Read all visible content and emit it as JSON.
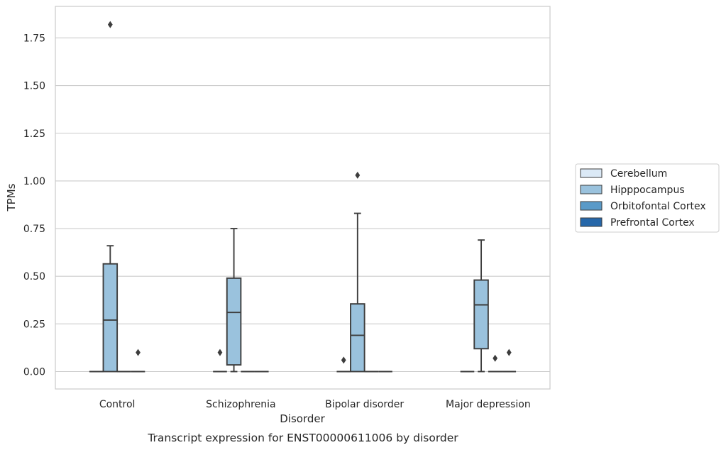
{
  "chart_data": {
    "type": "boxplot",
    "xlabel": "Disorder",
    "ylabel": "TPMs",
    "caption": "Transcript expression for ENST00000611006 by disorder",
    "ylim": [
      -0.09,
      1.92
    ],
    "yticks": [
      "0.00",
      "0.25",
      "0.50",
      "0.75",
      "1.00",
      "1.25",
      "1.50",
      "1.75"
    ],
    "grid": "horizontal",
    "legend_position": "right",
    "categories": [
      "Control",
      "Schizophrenia",
      "Bipolar disorder",
      "Major depression"
    ],
    "series": [
      {
        "name": "Cerebellum",
        "color": "#dbe9f6",
        "boxes": [
          {
            "min": 0,
            "q1": 0,
            "median": 0,
            "q3": 0,
            "max": 0,
            "outliers": []
          },
          {
            "min": 0,
            "q1": 0,
            "median": 0,
            "q3": 0,
            "max": 0,
            "outliers": [
              0.1
            ]
          },
          {
            "min": 0,
            "q1": 0,
            "median": 0,
            "q3": 0,
            "max": 0,
            "outliers": [
              0.06
            ]
          },
          {
            "min": 0,
            "q1": 0,
            "median": 0,
            "q3": 0,
            "max": 0,
            "outliers": []
          }
        ]
      },
      {
        "name": "Hipppocampus",
        "color": "#9ac2dd",
        "boxes": [
          {
            "min": 0,
            "q1": 0,
            "median": 0.27,
            "q3": 0.565,
            "max": 0.66,
            "outliers": [
              1.82
            ]
          },
          {
            "min": 0,
            "q1": 0.035,
            "median": 0.31,
            "q3": 0.49,
            "max": 0.75,
            "outliers": []
          },
          {
            "min": 0,
            "q1": 0,
            "median": 0.19,
            "q3": 0.355,
            "max": 0.83,
            "outliers": [
              1.03
            ]
          },
          {
            "min": 0,
            "q1": 0.12,
            "median": 0.35,
            "q3": 0.48,
            "max": 0.69,
            "outliers": []
          }
        ]
      },
      {
        "name": "Orbitofontal Cortex",
        "color": "#5a9ac8",
        "boxes": [
          {
            "min": 0,
            "q1": 0,
            "median": 0,
            "q3": 0,
            "max": 0,
            "outliers": []
          },
          {
            "min": 0,
            "q1": 0,
            "median": 0,
            "q3": 0,
            "max": 0,
            "outliers": []
          },
          {
            "min": 0,
            "q1": 0,
            "median": 0,
            "q3": 0,
            "max": 0,
            "outliers": []
          },
          {
            "min": 0,
            "q1": 0,
            "median": 0,
            "q3": 0,
            "max": 0,
            "outliers": [
              0.07
            ]
          }
        ]
      },
      {
        "name": "Prefrontal Cortex",
        "color": "#2667a9",
        "boxes": [
          {
            "min": 0,
            "q1": 0,
            "median": 0,
            "q3": 0,
            "max": 0,
            "outliers": [
              0.1
            ]
          },
          {
            "min": 0,
            "q1": 0,
            "median": 0,
            "q3": 0,
            "max": 0,
            "outliers": []
          },
          {
            "min": 0,
            "q1": 0,
            "median": 0,
            "q3": 0,
            "max": 0,
            "outliers": []
          },
          {
            "min": 0,
            "q1": 0,
            "median": 0,
            "q3": 0,
            "max": 0,
            "outliers": [
              0.1
            ]
          }
        ]
      }
    ]
  }
}
